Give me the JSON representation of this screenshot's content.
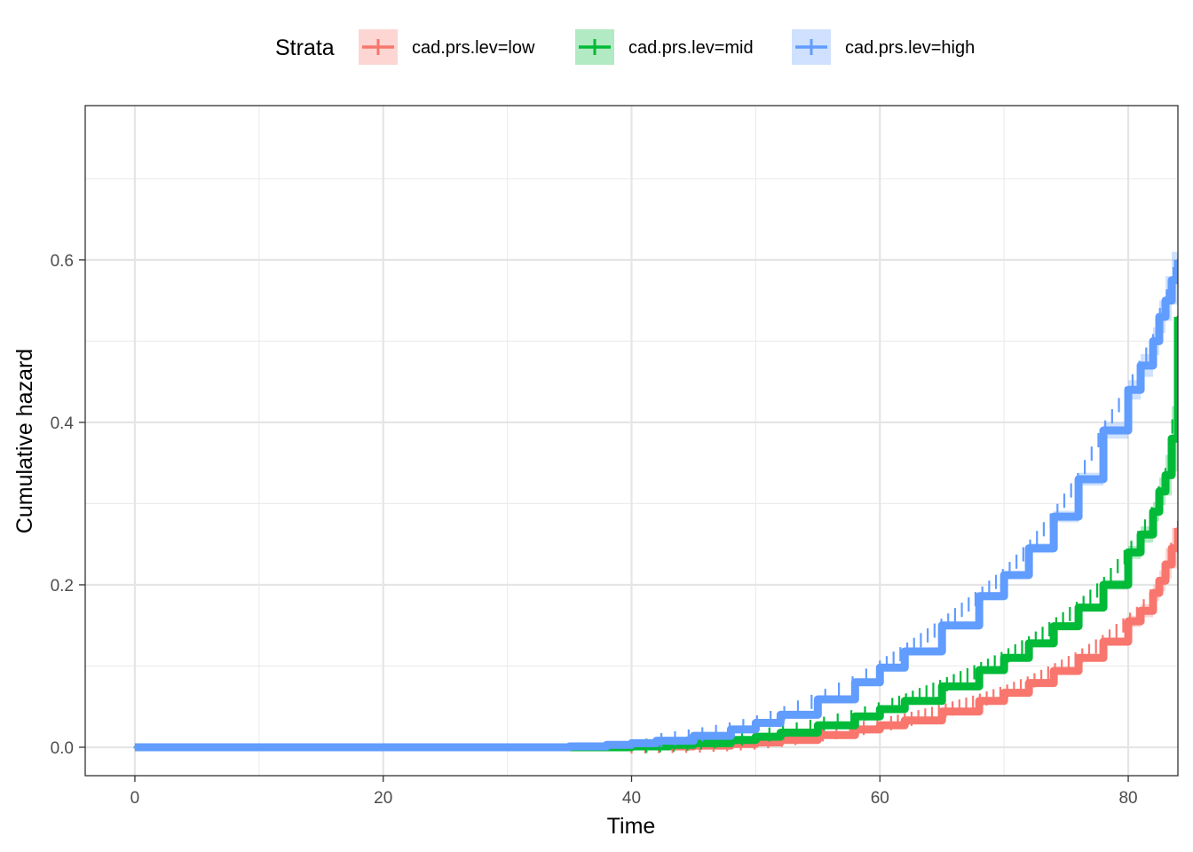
{
  "chart_data": {
    "type": "line",
    "title": "",
    "xlabel": "Time",
    "ylabel": "Cumulative hazard",
    "xlim": [
      -4,
      84
    ],
    "ylim": [
      -0.035,
      0.79
    ],
    "x_ticks": [
      0,
      20,
      40,
      60,
      80
    ],
    "x_tick_labels": [
      "0",
      "20",
      "40",
      "60",
      "80"
    ],
    "y_ticks": [
      0.0,
      0.2,
      0.4,
      0.6
    ],
    "y_tick_labels": [
      "0.0",
      "0.2",
      "0.4",
      "0.6"
    ],
    "grid": true,
    "legend": {
      "title": "Strata",
      "position": "top"
    },
    "series": [
      {
        "name": "cad.prs.lev=low",
        "color": "#F8766D",
        "ci_color": "#F8766D",
        "x": [
          0,
          20,
          35,
          40,
          45,
          48,
          50,
          52,
          55,
          58,
          60,
          62,
          65,
          68,
          70,
          72,
          74,
          76,
          78,
          80,
          81,
          82,
          82.5,
          83,
          83.5,
          84
        ],
        "y": [
          0,
          0,
          0,
          0.001,
          0.002,
          0.004,
          0.006,
          0.009,
          0.015,
          0.022,
          0.027,
          0.033,
          0.044,
          0.057,
          0.067,
          0.079,
          0.094,
          0.11,
          0.13,
          0.155,
          0.168,
          0.19,
          0.205,
          0.225,
          0.245,
          0.27
        ],
        "ci_lower": [
          0,
          0,
          0,
          0.0005,
          0.0015,
          0.003,
          0.005,
          0.008,
          0.013,
          0.02,
          0.025,
          0.031,
          0.042,
          0.054,
          0.064,
          0.076,
          0.09,
          0.106,
          0.125,
          0.148,
          0.16,
          0.18,
          0.192,
          0.208,
          0.22,
          0.235
        ],
        "ci_upper": [
          0,
          0,
          0,
          0.0015,
          0.0025,
          0.005,
          0.007,
          0.01,
          0.017,
          0.024,
          0.029,
          0.035,
          0.046,
          0.06,
          0.07,
          0.082,
          0.098,
          0.114,
          0.135,
          0.162,
          0.176,
          0.2,
          0.218,
          0.245,
          0.27,
          0.31
        ]
      },
      {
        "name": "cad.prs.lev=mid",
        "color": "#00BA38",
        "ci_color": "#00BA38",
        "x": [
          0,
          20,
          35,
          40,
          43,
          45,
          48,
          50,
          52,
          55,
          58,
          60,
          62,
          65,
          68,
          70,
          72,
          74,
          76,
          78,
          80,
          81,
          82,
          82.5,
          83,
          83.5,
          84
        ],
        "y": [
          0,
          0,
          0,
          0.001,
          0.003,
          0.005,
          0.009,
          0.013,
          0.018,
          0.027,
          0.038,
          0.047,
          0.057,
          0.075,
          0.095,
          0.11,
          0.128,
          0.149,
          0.172,
          0.2,
          0.24,
          0.262,
          0.29,
          0.315,
          0.335,
          0.38,
          0.53
        ],
        "ci_lower": [
          0,
          0,
          0,
          0.0005,
          0.002,
          0.004,
          0.008,
          0.012,
          0.017,
          0.025,
          0.036,
          0.045,
          0.055,
          0.073,
          0.092,
          0.107,
          0.124,
          0.145,
          0.167,
          0.194,
          0.232,
          0.252,
          0.278,
          0.298,
          0.31,
          0.34,
          0.44
        ],
        "ci_upper": [
          0,
          0,
          0,
          0.0015,
          0.004,
          0.006,
          0.01,
          0.014,
          0.019,
          0.029,
          0.04,
          0.049,
          0.059,
          0.077,
          0.098,
          0.113,
          0.132,
          0.153,
          0.177,
          0.206,
          0.248,
          0.272,
          0.302,
          0.332,
          0.36,
          0.42,
          0.6
        ]
      },
      {
        "name": "cad.prs.lev=high",
        "color": "#619CFF",
        "ci_color": "#619CFF",
        "x": [
          0,
          20,
          35,
          38,
          40,
          42,
          45,
          48,
          50,
          52,
          55,
          58,
          60,
          62,
          65,
          68,
          70,
          72,
          74,
          76,
          78,
          80,
          81,
          82,
          82.5,
          83,
          83.5,
          84
        ],
        "y": [
          0,
          0,
          0.001,
          0.003,
          0.005,
          0.008,
          0.014,
          0.022,
          0.03,
          0.04,
          0.059,
          0.08,
          0.098,
          0.118,
          0.15,
          0.186,
          0.212,
          0.245,
          0.284,
          0.33,
          0.39,
          0.44,
          0.47,
          0.5,
          0.53,
          0.55,
          0.575,
          0.6
        ],
        "ci_lower": [
          0,
          0,
          0.0005,
          0.002,
          0.004,
          0.007,
          0.012,
          0.02,
          0.028,
          0.038,
          0.056,
          0.077,
          0.095,
          0.115,
          0.146,
          0.181,
          0.207,
          0.239,
          0.277,
          0.322,
          0.38,
          0.428,
          0.456,
          0.483,
          0.51,
          0.525,
          0.545,
          0.56
        ],
        "ci_upper": [
          0,
          0,
          0.0015,
          0.004,
          0.006,
          0.009,
          0.016,
          0.024,
          0.032,
          0.042,
          0.062,
          0.083,
          0.101,
          0.121,
          0.154,
          0.191,
          0.217,
          0.251,
          0.291,
          0.338,
          0.4,
          0.452,
          0.484,
          0.517,
          0.55,
          0.58,
          0.61,
          0.66
        ]
      }
    ]
  }
}
